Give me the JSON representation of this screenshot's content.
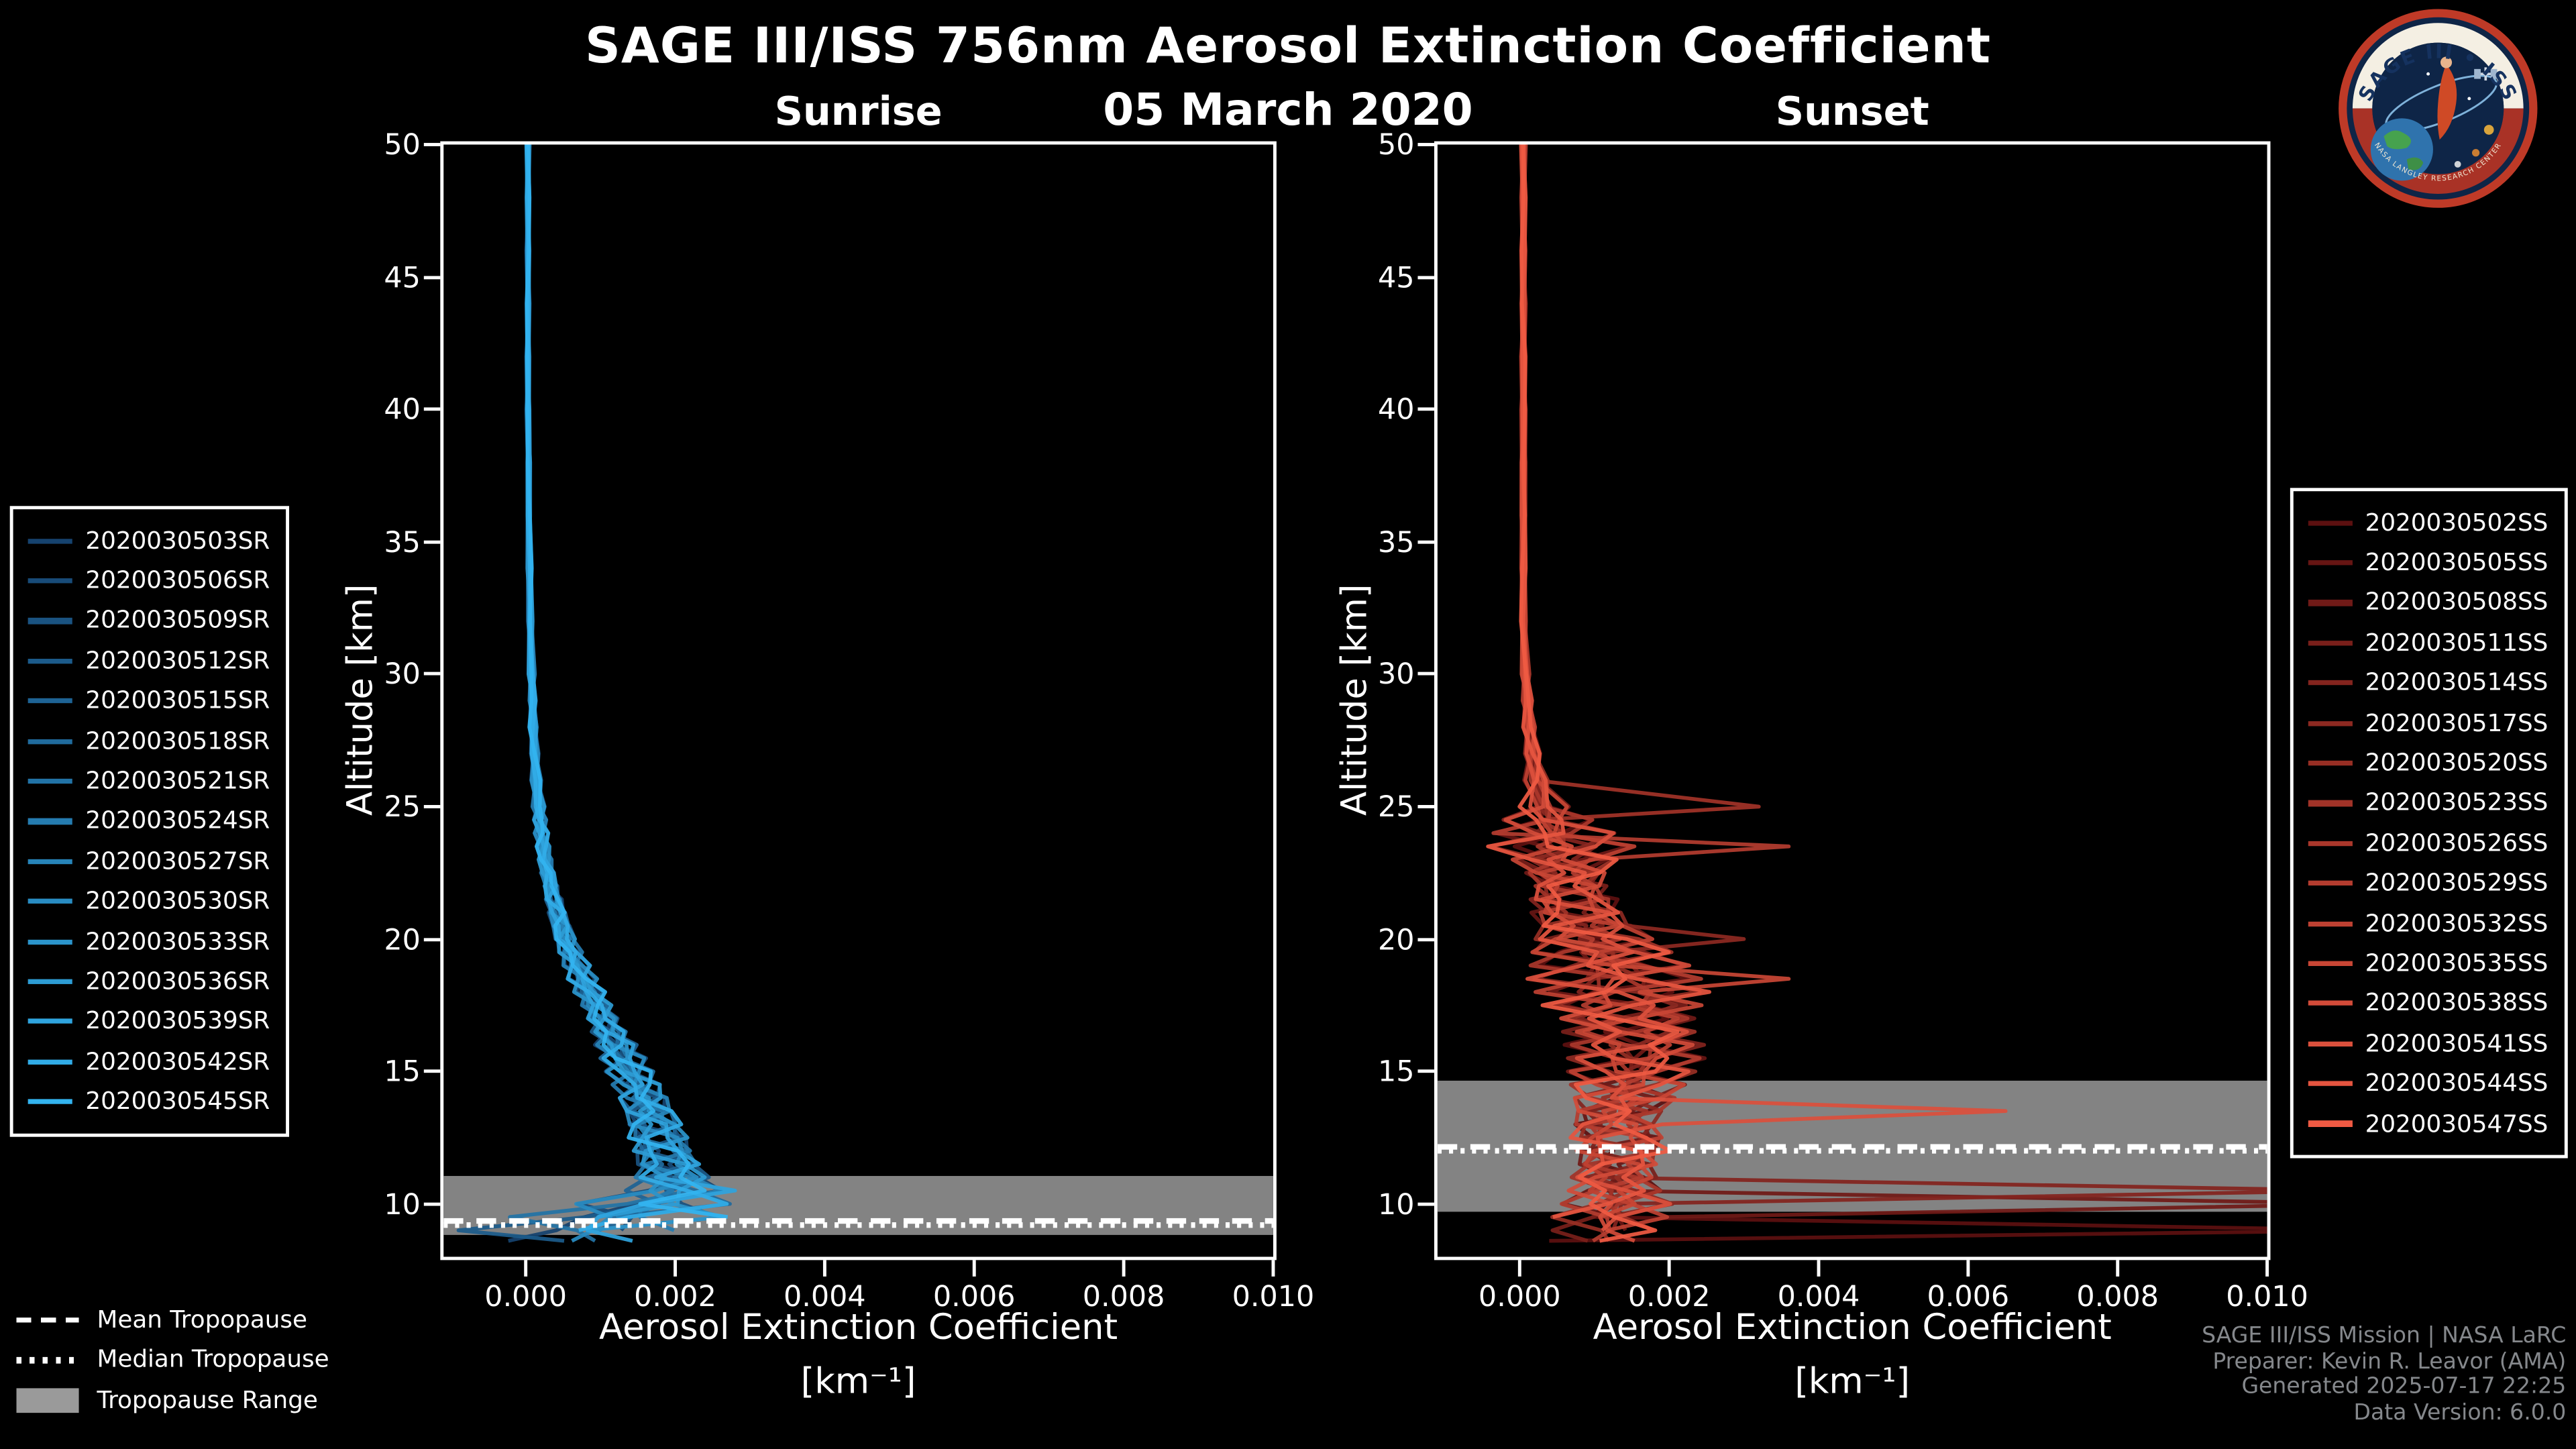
{
  "title": "SAGE III/ISS 756nm Aerosol Extinction Coefficient",
  "date": "05 March 2020",
  "logo": {
    "text": "SAGE III • ISS",
    "subtext": "NASA LANGLEY RESEARCH CENTER"
  },
  "credits": [
    "SAGE III/ISS Mission | NASA LaRC",
    "Preparer: Kevin R. Leavor (AMA)",
    "Generated 2025-07-17 22:25",
    "Data Version: 6.0.0"
  ],
  "tropopause_legend": [
    {
      "label": "Mean Tropopause",
      "style": "dashed"
    },
    {
      "label": "Median Tropopause",
      "style": "dotted"
    },
    {
      "label": "Tropopause Range",
      "style": "band"
    }
  ],
  "chart_data": {
    "type": "line",
    "title": "SAGE III/ISS 756nm Aerosol Extinction Coefficient — 05 March 2020",
    "xlabel": "Aerosol Extinction Coefficient",
    "xunit": "[km⁻¹]",
    "ylabel": "Altitude [km]",
    "xlim": [
      -0.0011,
      0.01
    ],
    "ylim": [
      8,
      50
    ],
    "xticks": [
      0.0,
      0.002,
      0.004,
      0.006,
      0.008,
      0.01
    ],
    "yticks": [
      10,
      15,
      20,
      25,
      30,
      35,
      40,
      45,
      50
    ],
    "grid": false,
    "legend_position": "outside-left-and-right",
    "altitudes": [
      50,
      48,
      46,
      44,
      42,
      40,
      38,
      36,
      34,
      32,
      30,
      29,
      28,
      27,
      26,
      25,
      24.5,
      24,
      23.5,
      23,
      22.5,
      22,
      21.5,
      21,
      20.5,
      20,
      19.5,
      19,
      18.5,
      18,
      17.5,
      17,
      16.5,
      16,
      15.5,
      15,
      14.5,
      14,
      13.5,
      13,
      12.5,
      12,
      11.5,
      11,
      10.5,
      10,
      9.5,
      9,
      8.6
    ],
    "panels": [
      {
        "title": "Sunrise",
        "color_start": "#16436f",
        "color_end": "#33b4f0",
        "series": [
          "2020030503SR",
          "2020030506SR",
          "2020030509SR",
          "2020030512SR",
          "2020030515SR",
          "2020030518SR",
          "2020030521SR",
          "2020030524SR",
          "2020030527SR",
          "2020030530SR",
          "2020030533SR",
          "2020030536SR",
          "2020030539SR",
          "2020030542SR",
          "2020030545SR"
        ],
        "mean_extinction": [
          3e-05,
          3e-05,
          3e-05,
          3e-05,
          3e-05,
          3e-05,
          4e-05,
          4e-05,
          5e-05,
          6e-05,
          8e-05,
          9e-05,
          0.0001,
          0.00012,
          0.00014,
          0.00017,
          0.00019,
          0.00021,
          0.00023,
          0.00026,
          0.00029,
          0.00033,
          0.00037,
          0.00042,
          0.00047,
          0.00053,
          0.0006,
          0.00068,
          0.00076,
          0.00085,
          0.00094,
          0.00103,
          0.00112,
          0.00121,
          0.0013,
          0.00139,
          0.00148,
          0.00157,
          0.00165,
          0.00172,
          0.00179,
          0.00185,
          0.0019,
          0.00195,
          0.00198,
          0.0017,
          0.0012,
          0.0007,
          0.0005
        ],
        "spread": [
          2e-05,
          2e-05,
          2e-05,
          2e-05,
          2e-05,
          2e-05,
          2e-05,
          2e-05,
          3e-05,
          3e-05,
          4e-05,
          4e-05,
          5e-05,
          5e-05,
          6e-05,
          7e-05,
          7e-05,
          8e-05,
          8e-05,
          9e-05,
          0.0001,
          0.0001,
          0.00011,
          0.00012,
          0.00013,
          0.00014,
          0.00015,
          0.00016,
          0.00017,
          0.00018,
          0.00019,
          0.0002,
          0.00022,
          0.00024,
          0.00026,
          0.00028,
          0.0003,
          0.00033,
          0.00036,
          0.00039,
          0.00042,
          0.00045,
          0.00048,
          0.00052,
          0.0006,
          0.0009,
          0.0012,
          0.0011,
          0.0008
        ],
        "outlier_spikes": [
          {
            "series": 12,
            "alt": 10.5,
            "x": 0.0028
          },
          {
            "series": 14,
            "alt": 9.5,
            "x": 0.0027
          },
          {
            "series": 3,
            "alt": 9.0,
            "x": -0.0009
          }
        ],
        "tropopause": {
          "mean": 9.35,
          "median": 9.2,
          "range": [
            8.82,
            11.05
          ]
        }
      },
      {
        "title": "Sunset",
        "color_start": "#5c1010",
        "color_end": "#ef5a43",
        "series": [
          "2020030502SS",
          "2020030505SS",
          "2020030508SS",
          "2020030511SS",
          "2020030514SS",
          "2020030517SS",
          "2020030520SS",
          "2020030523SS",
          "2020030526SS",
          "2020030529SS",
          "2020030532SS",
          "2020030535SS",
          "2020030538SS",
          "2020030541SS",
          "2020030544SS",
          "2020030547SS"
        ],
        "mean_extinction": [
          5e-05,
          5e-05,
          5e-05,
          5e-05,
          5e-05,
          5e-05,
          5e-05,
          5e-05,
          5e-05,
          5e-05,
          8e-05,
          0.0001,
          0.00013,
          0.00017,
          0.00022,
          0.0003,
          0.00038,
          0.00046,
          0.00055,
          0.0006,
          0.00062,
          0.00065,
          0.0007,
          0.00078,
          0.00088,
          0.001,
          0.0011,
          0.0012,
          0.00128,
          0.00135,
          0.0014,
          0.00145,
          0.0015,
          0.00155,
          0.00155,
          0.0015,
          0.00145,
          0.0014,
          0.00135,
          0.0013,
          0.00132,
          0.00135,
          0.0013,
          0.00125,
          0.00125,
          0.0013,
          0.0012,
          0.0011,
          0.0009
        ],
        "spread": [
          3e-05,
          3e-05,
          3e-05,
          3e-05,
          3e-05,
          3e-05,
          3e-05,
          3e-05,
          3e-05,
          3e-05,
          5e-05,
          6e-05,
          8e-05,
          0.0001,
          0.00014,
          0.0003,
          0.0005,
          0.0007,
          0.0009,
          0.0007,
          0.0006,
          0.00055,
          0.0006,
          0.00065,
          0.0007,
          0.00085,
          0.0009,
          0.00095,
          0.001,
          0.001,
          0.00095,
          0.0009,
          0.00085,
          0.0008,
          0.00078,
          0.00075,
          0.00072,
          0.0007,
          0.00068,
          0.00065,
          0.00065,
          0.00065,
          0.0006,
          0.0006,
          0.0006,
          0.00065,
          0.00065,
          0.0006,
          0.00055
        ],
        "outlier_spikes": [
          {
            "series": 0,
            "alt": 9.0,
            "x": 0.0115
          },
          {
            "series": 2,
            "alt": 10.0,
            "x": 0.0115
          },
          {
            "series": 4,
            "alt": 10.5,
            "x": 0.0112
          },
          {
            "series": 13,
            "alt": 13.5,
            "x": 0.0065
          },
          {
            "series": 9,
            "alt": 23.5,
            "x": 0.0036
          },
          {
            "series": 7,
            "alt": 25.0,
            "x": 0.0032
          },
          {
            "series": 5,
            "alt": 20.0,
            "x": 0.003
          },
          {
            "series": 11,
            "alt": 18.5,
            "x": 0.0036
          }
        ],
        "tropopause": {
          "mean": 12.15,
          "median": 12.0,
          "range": [
            9.7,
            14.65
          ]
        }
      }
    ]
  }
}
